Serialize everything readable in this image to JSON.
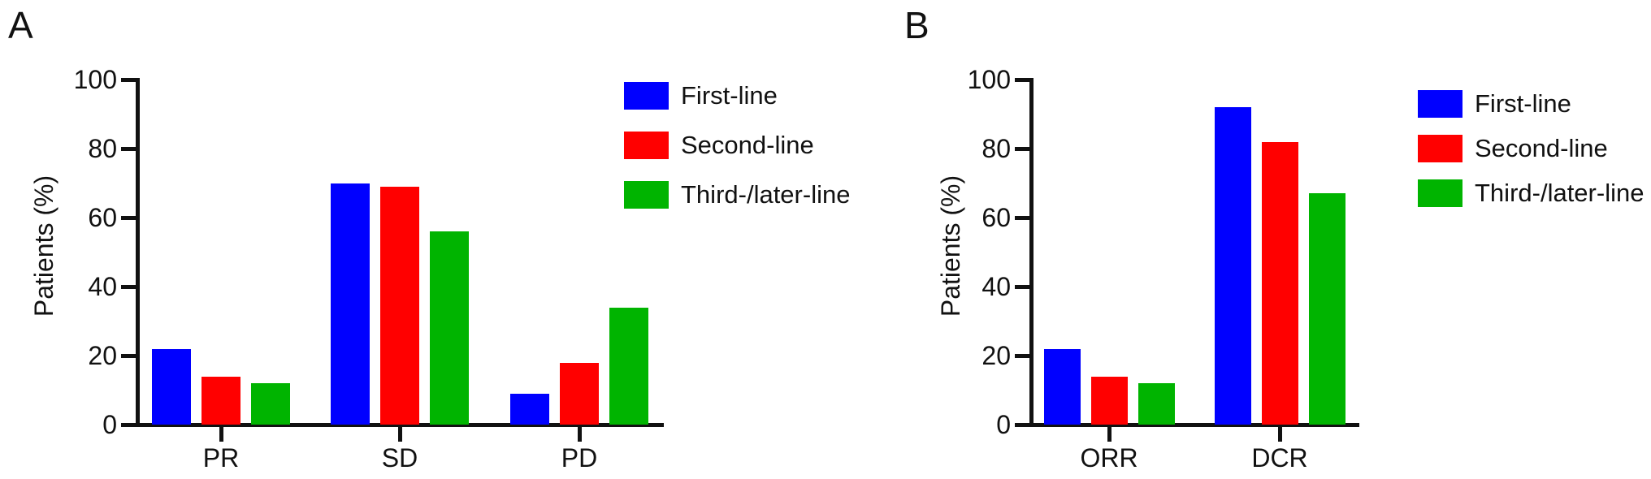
{
  "figure": {
    "background": "#ffffff",
    "axis_color": "#111111",
    "text_color": "#111111"
  },
  "chart_data": [
    {
      "type": "bar",
      "panel_label": "A",
      "title": "",
      "categories": [
        "PR",
        "SD",
        "PD"
      ],
      "series": [
        {
          "name": "First-line",
          "color": "#0000ff",
          "values": [
            22,
            70,
            9
          ]
        },
        {
          "name": "Second-line",
          "color": "#ff0000",
          "values": [
            14,
            69,
            18
          ]
        },
        {
          "name": "Third-/later-line",
          "color": "#00b400",
          "values": [
            12,
            56,
            34
          ]
        }
      ],
      "xlabel": "",
      "ylabel": "Patients (%)",
      "ylim": [
        0,
        100
      ],
      "yticks": [
        0,
        20,
        40,
        60,
        80,
        100
      ],
      "grid": false,
      "legend_position": "top-right"
    },
    {
      "type": "bar",
      "panel_label": "B",
      "title": "",
      "categories": [
        "ORR",
        "DCR"
      ],
      "series": [
        {
          "name": "First-line",
          "color": "#0000ff",
          "values": [
            22,
            92
          ]
        },
        {
          "name": "Second-line",
          "color": "#ff0000",
          "values": [
            14,
            82
          ]
        },
        {
          "name": "Third-/later-line",
          "color": "#00b400",
          "values": [
            12,
            67
          ]
        }
      ],
      "xlabel": "",
      "ylabel": "Patients (%)",
      "ylim": [
        0,
        100
      ],
      "yticks": [
        0,
        20,
        40,
        60,
        80,
        100
      ],
      "grid": false,
      "legend_position": "top-right"
    }
  ]
}
